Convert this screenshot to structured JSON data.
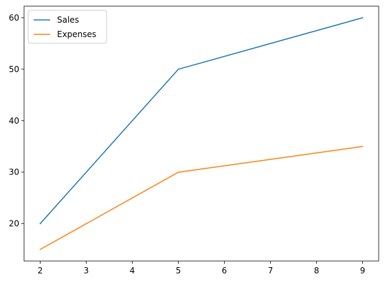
{
  "chart_data": {
    "type": "line",
    "title": "",
    "xlabel": "",
    "ylabel": "",
    "x": [
      2,
      5,
      9
    ],
    "series": [
      {
        "name": "Sales",
        "values": [
          20,
          50,
          60
        ],
        "color": "#1f77b4"
      },
      {
        "name": "Expenses",
        "values": [
          15,
          30,
          35
        ],
        "color": "#ff7f0e"
      }
    ],
    "xlim": [
      1.65,
      9.35
    ],
    "ylim": [
      12.75,
      62.25
    ],
    "xticks": [
      2,
      3,
      4,
      5,
      6,
      7,
      8,
      9
    ],
    "yticks": [
      20,
      30,
      40,
      50,
      60
    ],
    "grid": false,
    "legend_position": "top-left"
  }
}
